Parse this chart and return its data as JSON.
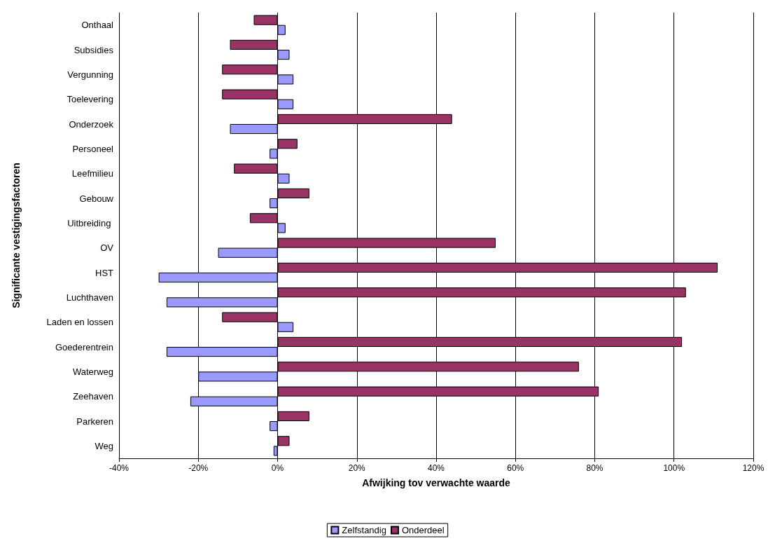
{
  "chart_data": {
    "type": "bar",
    "orientation": "horizontal",
    "xlabel": "Afwijking tov verwachte waarde",
    "ylabel": "Significante vestigingsfactoren",
    "categories": [
      "Onthaal",
      "Subsidies",
      "Vergunning",
      "Toelevering",
      "Onderzoek",
      "Personeel",
      "Leefmilieu",
      "Gebouw",
      "Uitbreiding ",
      "OV",
      "HST",
      "Luchthaven",
      "Laden en lossen",
      "Goederentrein",
      "Waterweg",
      "Zeehaven",
      "Parkeren",
      "Weg"
    ],
    "series": [
      {
        "name": "Zelfstandig",
        "color": "#9999ff",
        "values": [
          0.02,
          0.03,
          0.04,
          0.04,
          -0.12,
          -0.02,
          0.03,
          -0.02,
          0.02,
          -0.15,
          -0.3,
          -0.28,
          0.04,
          -0.28,
          -0.2,
          -0.22,
          -0.02,
          -0.01
        ]
      },
      {
        "name": "Onderdeel",
        "color": "#993366",
        "values": [
          -0.06,
          -0.12,
          -0.14,
          -0.14,
          0.44,
          0.05,
          -0.11,
          0.08,
          -0.07,
          0.55,
          1.11,
          1.03,
          -0.14,
          1.02,
          0.76,
          0.81,
          0.08,
          0.03
        ]
      }
    ],
    "xlim": [
      -0.4,
      1.2
    ],
    "xticks": [
      {
        "value": -0.4,
        "label": "-40%"
      },
      {
        "value": -0.2,
        "label": "-20%"
      },
      {
        "value": 0,
        "label": "0%"
      },
      {
        "value": 0.2,
        "label": "20%"
      },
      {
        "value": 0.4,
        "label": "40%"
      },
      {
        "value": 0.6,
        "label": "60%"
      },
      {
        "value": 0.8,
        "label": "80%"
      },
      {
        "value": 1,
        "label": "100%"
      },
      {
        "value": 1.2,
        "label": "120%"
      }
    ],
    "grid": "x",
    "legend": "bottom"
  }
}
